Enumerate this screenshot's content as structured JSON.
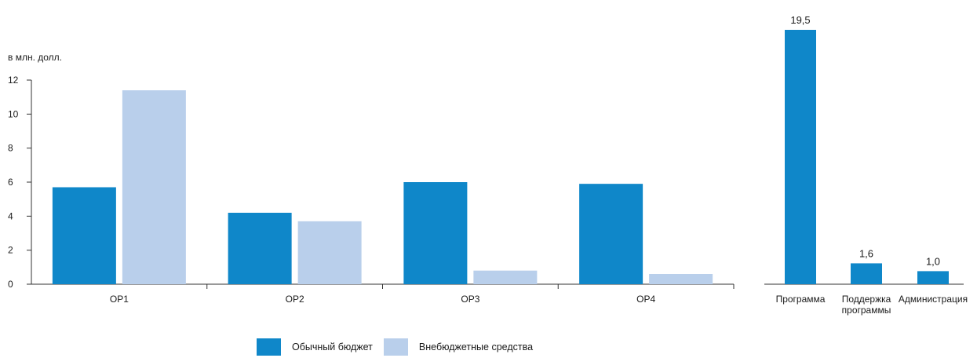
{
  "colors": {
    "primary": "#0f87c9",
    "secondary": "#b9cfeb",
    "axis": "#333333"
  },
  "chart_data": [
    {
      "type": "bar",
      "ylabel": "в млн. долл.",
      "ylim": [
        0,
        12
      ],
      "yticks": [
        0,
        2,
        4,
        6,
        8,
        10,
        12
      ],
      "categories": [
        "OP1",
        "OP2",
        "OP3",
        "OP4"
      ],
      "series": [
        {
          "name": "Обычный бюджет",
          "color": "#0f87c9",
          "values": [
            5.7,
            4.2,
            6.0,
            5.9
          ]
        },
        {
          "name": "Внебюджетные средства",
          "color": "#b9cfeb",
          "values": [
            11.4,
            3.7,
            0.8,
            0.6
          ]
        }
      ],
      "grid": false,
      "legend": "bottom-center"
    },
    {
      "type": "bar",
      "categories": [
        "Программа",
        "Поддержка программы",
        "Администрация"
      ],
      "values": [
        19.5,
        1.6,
        1.0
      ],
      "value_labels": [
        "19,5",
        "1,6",
        "1,0"
      ],
      "color": "#0f87c9",
      "ylim": [
        0,
        19.5
      ]
    }
  ],
  "legend": {
    "items": [
      {
        "label": "Обычный бюджет",
        "color": "#0f87c9"
      },
      {
        "label": "Внебюджетные средства",
        "color": "#b9cfeb"
      }
    ]
  }
}
